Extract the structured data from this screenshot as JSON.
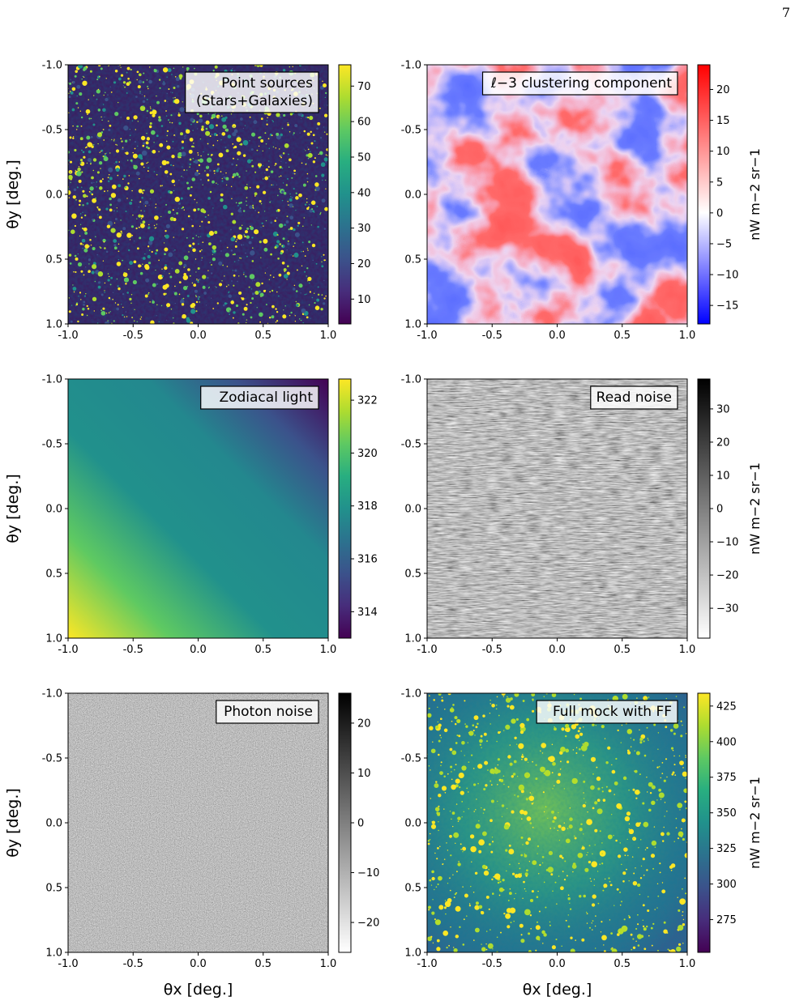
{
  "page_number": "7",
  "chart_data": [
    {
      "type": "heatmap",
      "panel": "point-sources",
      "annotation": [
        "Point sources",
        "(Stars+Galaxies)"
      ],
      "ylabel": "θy [deg.]",
      "xlabel": "",
      "xlim": [
        -1.0,
        1.0
      ],
      "ylim": [
        -1.0,
        1.0
      ],
      "xticks": [
        "-1.0",
        "-0.5",
        "0.0",
        "0.5",
        "1.0"
      ],
      "yticks": [
        "-1.0",
        "-0.5",
        "0.0",
        "0.5",
        "1.0"
      ],
      "colormap": "viridis",
      "colorbar": {
        "ticks": [
          10,
          20,
          30,
          40,
          50,
          60,
          70
        ],
        "range": [
          3,
          76
        ],
        "label": ""
      },
      "content": "sparse bright point sources on dark background"
    },
    {
      "type": "heatmap",
      "panel": "clustering",
      "annotation": [
        "ℓ−3 clustering component"
      ],
      "ylabel": "",
      "xlabel": "",
      "xlim": [
        -1.0,
        1.0
      ],
      "ylim": [
        -1.0,
        1.0
      ],
      "xticks": [
        "-1.0",
        "-0.5",
        "0.0",
        "0.5",
        "1.0"
      ],
      "yticks": [
        "-1.0",
        "-0.5",
        "0.0",
        "0.5",
        "1.0"
      ],
      "colormap": "bwr",
      "colorbar": {
        "ticks": [
          20,
          15,
          10,
          5,
          0,
          -5,
          -10,
          -15
        ],
        "tick_labels": [
          "20",
          "15",
          "10",
          "5",
          "0",
          "−5",
          "−10",
          "−15"
        ],
        "range": [
          -18,
          24
        ],
        "label": "nW m−2 sr−1"
      },
      "content": "smooth large-scale red/blue fluctuations"
    },
    {
      "type": "heatmap",
      "panel": "zodiacal",
      "annotation": [
        "Zodiacal light"
      ],
      "ylabel": "θy [deg.]",
      "xlabel": "",
      "xlim": [
        -1.0,
        1.0
      ],
      "ylim": [
        -1.0,
        1.0
      ],
      "xticks": [
        "-1.0",
        "-0.5",
        "0.0",
        "0.5",
        "1.0"
      ],
      "yticks": [
        "-1.0",
        "-0.5",
        "0.0",
        "0.5",
        "1.0"
      ],
      "colormap": "viridis",
      "colorbar": {
        "ticks": [
          322,
          320,
          318,
          316,
          314
        ],
        "range": [
          313.0,
          322.8
        ],
        "label": ""
      },
      "content": "diagonal gradient, bright bottom-left to dark top-right"
    },
    {
      "type": "heatmap",
      "panel": "read-noise",
      "annotation": [
        "Read noise"
      ],
      "ylabel": "",
      "xlabel": "",
      "xlim": [
        -1.0,
        1.0
      ],
      "ylim": [
        -1.0,
        1.0
      ],
      "xticks": [
        "-1.0",
        "-0.5",
        "0.0",
        "0.5",
        "1.0"
      ],
      "yticks": [
        "-1.0",
        "-0.5",
        "0.0",
        "0.5",
        "1.0"
      ],
      "colormap": "gray_r",
      "colorbar": {
        "ticks": [
          30,
          20,
          10,
          0,
          -10,
          -20,
          -30
        ],
        "tick_labels": [
          "30",
          "20",
          "10",
          "0",
          "−10",
          "−20",
          "−30"
        ],
        "range": [
          -39,
          39
        ],
        "label": "nW m−2 sr−1"
      },
      "content": "gray noise with horizontal streaks"
    },
    {
      "type": "heatmap",
      "panel": "photon-noise",
      "annotation": [
        "Photon noise"
      ],
      "ylabel": "θy [deg.]",
      "xlabel": "θx [deg.]",
      "xlim": [
        -1.0,
        1.0
      ],
      "ylim": [
        -1.0,
        1.0
      ],
      "xticks": [
        "-1.0",
        "-0.5",
        "0.0",
        "0.5",
        "1.0"
      ],
      "yticks": [
        "-1.0",
        "-0.5",
        "0.0",
        "0.5",
        "1.0"
      ],
      "colormap": "gray_r",
      "colorbar": {
        "ticks": [
          20,
          10,
          0,
          -10,
          -20
        ],
        "tick_labels": [
          "20",
          "10",
          "0",
          "−10",
          "−20"
        ],
        "range": [
          -26,
          26
        ],
        "label": ""
      },
      "content": "fine-grained gray noise"
    },
    {
      "type": "heatmap",
      "panel": "full-mock",
      "annotation": [
        "Full mock with FF"
      ],
      "ylabel": "",
      "xlabel": "θx [deg.]",
      "xlim": [
        -1.0,
        1.0
      ],
      "ylim": [
        -1.0,
        1.0
      ],
      "xticks": [
        "-1.0",
        "-0.5",
        "0.0",
        "0.5",
        "1.0"
      ],
      "yticks": [
        "-1.0",
        "-0.5",
        "0.0",
        "0.5",
        "1.0"
      ],
      "colormap": "viridis",
      "colorbar": {
        "ticks": [
          425,
          400,
          375,
          350,
          325,
          300,
          275
        ],
        "range": [
          252,
          434
        ],
        "label": "nW m−2 sr−1"
      },
      "content": "combined sky with flat-field vignetting and point sources"
    }
  ]
}
